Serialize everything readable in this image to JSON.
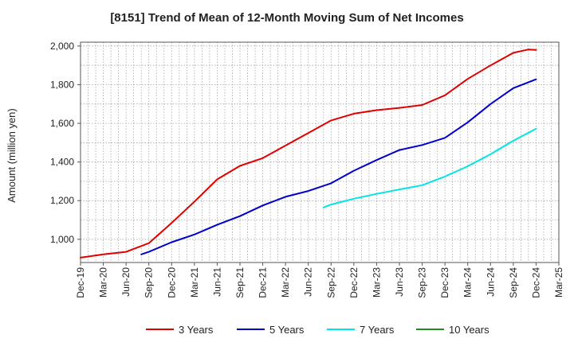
{
  "chart_data": {
    "type": "line",
    "title": "[8151]  Trend of Mean of 12-Month Moving Sum of Net Incomes",
    "xlabel": "",
    "ylabel": "Amount (million yen)",
    "ylim": [
      880,
      2020
    ],
    "yticks": [
      1000,
      1200,
      1400,
      1600,
      1800,
      2000
    ],
    "ytick_labels": [
      "1,000",
      "1,200",
      "1,400",
      "1,600",
      "1,800",
      "2,000"
    ],
    "xtick_labels": [
      "Dec-19",
      "Mar-20",
      "Jun-20",
      "Sep-20",
      "Dec-20",
      "Mar-21",
      "Jun-21",
      "Sep-21",
      "Dec-21",
      "Mar-22",
      "Jun-22",
      "Sep-22",
      "Dec-22",
      "Mar-23",
      "Jun-23",
      "Sep-23",
      "Dec-23",
      "Mar-24",
      "Jun-24",
      "Sep-24",
      "Dec-24",
      "Mar-25"
    ],
    "grid": true,
    "legend_position": "bottom",
    "series": [
      {
        "name": "3 Years",
        "color": "#e00000",
        "x": [
          "Dec-19",
          "Mar-20",
          "Jun-20",
          "Sep-20",
          "Dec-20",
          "Mar-21",
          "Jun-21",
          "Sep-21",
          "Dec-21",
          "Mar-22",
          "Jun-22",
          "Sep-22",
          "Dec-22",
          "Mar-23",
          "Jun-23",
          "Sep-23",
          "Dec-23",
          "Mar-24",
          "Jun-24",
          "Sep-24",
          "Nov-24",
          "Dec-24"
        ],
        "values": [
          905,
          922,
          935,
          980,
          1085,
          1195,
          1310,
          1380,
          1420,
          1485,
          1550,
          1615,
          1650,
          1668,
          1680,
          1695,
          1745,
          1830,
          1900,
          1965,
          1982,
          1980
        ]
      },
      {
        "name": "5 Years",
        "color": "#0000cc",
        "x": [
          "Aug-20",
          "Sep-20",
          "Dec-20",
          "Mar-21",
          "Jun-21",
          "Sep-21",
          "Dec-21",
          "Mar-22",
          "Jun-22",
          "Sep-22",
          "Dec-22",
          "Mar-23",
          "Jun-23",
          "Sep-23",
          "Dec-23",
          "Mar-24",
          "Jun-24",
          "Sep-24",
          "Dec-24"
        ],
        "values": [
          922,
          935,
          985,
          1025,
          1075,
          1120,
          1175,
          1220,
          1250,
          1290,
          1355,
          1410,
          1462,
          1488,
          1525,
          1605,
          1700,
          1782,
          1828
        ]
      },
      {
        "name": "7 Years",
        "color": "#00e5e5",
        "x": [
          "Aug-22",
          "Sep-22",
          "Dec-22",
          "Mar-23",
          "Jun-23",
          "Sep-23",
          "Dec-23",
          "Mar-24",
          "Jun-24",
          "Sep-24",
          "Dec-24"
        ],
        "values": [
          1165,
          1180,
          1210,
          1235,
          1258,
          1280,
          1325,
          1378,
          1440,
          1510,
          1572
        ]
      },
      {
        "name": "10 Years",
        "color": "#228b22",
        "x": [],
        "values": []
      }
    ]
  }
}
